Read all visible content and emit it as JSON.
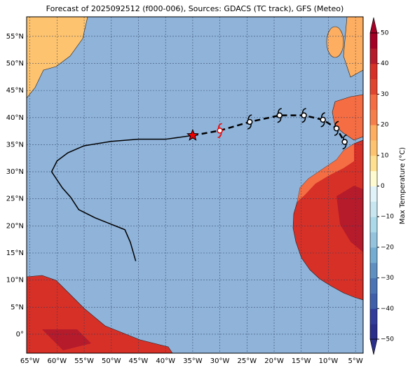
{
  "chart_data": {
    "type": "map",
    "title": "Forecast of 2025092512 (f000-006), Sources: GDACS (TC track), GFS (Meteo)",
    "xlim": [
      -65.6,
      -3.6
    ],
    "ylim": [
      -3.5,
      58.6
    ],
    "xticks": [
      {
        "value": -65,
        "label": "65°W"
      },
      {
        "value": -60,
        "label": "60°W"
      },
      {
        "value": -55,
        "label": "55°W"
      },
      {
        "value": -50,
        "label": "50°W"
      },
      {
        "value": -45,
        "label": "45°W"
      },
      {
        "value": -40,
        "label": "40°W"
      },
      {
        "value": -35,
        "label": "35°W"
      },
      {
        "value": -30,
        "label": "30°W"
      },
      {
        "value": -25,
        "label": "25°W"
      },
      {
        "value": -20,
        "label": "20°W"
      },
      {
        "value": -15,
        "label": "15°W"
      },
      {
        "value": -10,
        "label": "10°W"
      },
      {
        "value": -5,
        "label": "5°W"
      }
    ],
    "yticks": [
      {
        "value": 0,
        "label": "0°"
      },
      {
        "value": 5,
        "label": "5°N"
      },
      {
        "value": 10,
        "label": "10°N"
      },
      {
        "value": 15,
        "label": "15°N"
      },
      {
        "value": 20,
        "label": "20°N"
      },
      {
        "value": 25,
        "label": "25°N"
      },
      {
        "value": 30,
        "label": "30°N"
      },
      {
        "value": 35,
        "label": "35°N"
      },
      {
        "value": 40,
        "label": "40°N"
      },
      {
        "value": 45,
        "label": "45°N"
      },
      {
        "value": 50,
        "label": "50°N"
      },
      {
        "value": 55,
        "label": "55°N"
      }
    ],
    "grid": true,
    "ocean_color": "#8fb3d9",
    "colorbar": {
      "label": "Max Temperature (°C)",
      "lim": [
        -50,
        50
      ],
      "ticks": [
        {
          "value": -50,
          "label": "−50"
        },
        {
          "value": -40,
          "label": "−40"
        },
        {
          "value": -30,
          "label": "−30"
        },
        {
          "value": -20,
          "label": "−20"
        },
        {
          "value": -10,
          "label": "−10"
        },
        0,
        10,
        20,
        30,
        40,
        50
      ],
      "colors": [
        "#2b2f8c",
        "#323c9a",
        "#3f5fab",
        "#4a74b4",
        "#5f90c2",
        "#74add1",
        "#93c3dd",
        "#abd9e9",
        "#c8e6f0",
        "#e0f3f8",
        "#fffbd0",
        "#fee090",
        "#fdc36f",
        "#fdae61",
        "#f67e4b",
        "#f46d43",
        "#e0452e",
        "#d73027",
        "#b51b2b",
        "#a50026"
      ]
    },
    "tracks": [
      {
        "style": "past",
        "color": "#000000",
        "lon": [
          -45.5,
          -46.5,
          -47.5,
          -50,
          -53,
          -56,
          -57.5,
          -59,
          -60,
          -61,
          -60,
          -58,
          -55,
          -50,
          -45,
          -40,
          -35
        ],
        "lat": [
          13.5,
          17,
          19.3,
          20.3,
          21.5,
          23,
          25.3,
          27,
          28.5,
          30,
          32,
          33.5,
          34.8,
          35.6,
          36,
          36,
          36.7
        ]
      },
      {
        "style": "forecast",
        "color": "#000000",
        "lon": [
          -35,
          -30,
          -24.5,
          -19,
          -14.5,
          -11,
          -8.5,
          -7
        ],
        "lat": [
          36.7,
          37.6,
          39.2,
          40.4,
          40.4,
          39.6,
          38,
          35.5
        ]
      }
    ]
  }
}
